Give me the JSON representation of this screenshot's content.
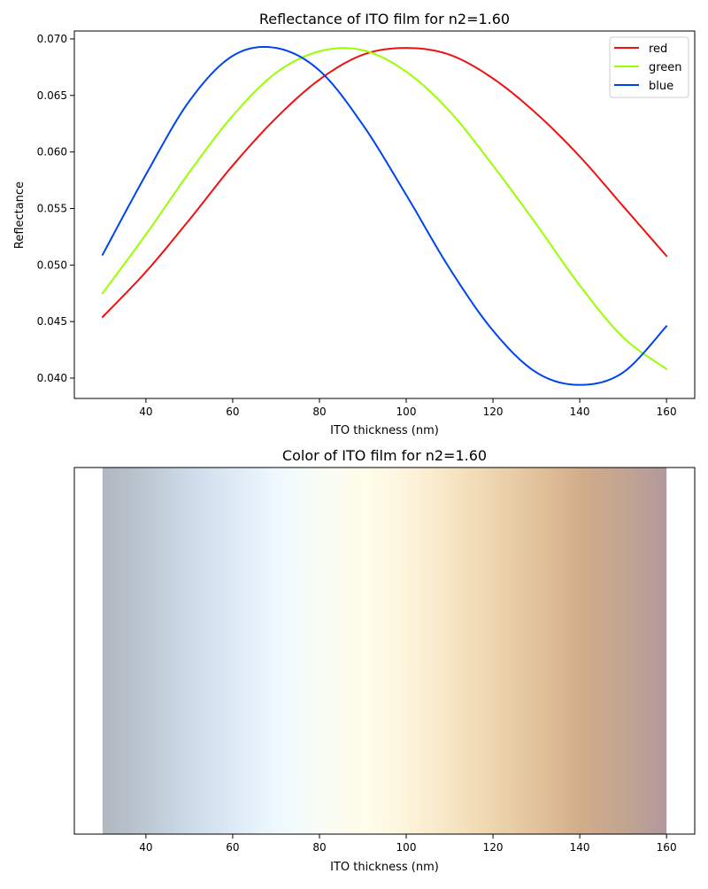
{
  "chart_data": [
    {
      "type": "line",
      "title": "Reflectance of ITO film for n2=1.60",
      "xlabel": "ITO thickness (nm)",
      "ylabel": "Reflectance",
      "xlim": [
        23.5,
        166.5
      ],
      "ylim": [
        0.0382,
        0.0707
      ],
      "xticks": [
        40,
        60,
        80,
        100,
        120,
        140,
        160
      ],
      "yticks": [
        0.04,
        0.045,
        0.05,
        0.055,
        0.06,
        0.065,
        0.07
      ],
      "ytick_labels": [
        "0.040",
        "0.045",
        "0.050",
        "0.055",
        "0.060",
        "0.065",
        "0.070"
      ],
      "grid": false,
      "legend_position": "top-right",
      "x": [
        30,
        40,
        50,
        60,
        70,
        80,
        90,
        100,
        110,
        120,
        130,
        140,
        150,
        160
      ],
      "series": [
        {
          "name": "red",
          "color": "#ee1111",
          "values": [
            0.0454,
            0.0494,
            0.054,
            0.0588,
            0.063,
            0.0664,
            0.0686,
            0.0692,
            0.0686,
            0.0665,
            0.0634,
            0.0596,
            0.0552,
            0.0508
          ]
        },
        {
          "name": "green",
          "color": "#99ff00",
          "values": [
            0.0475,
            0.0527,
            0.0582,
            0.0632,
            0.067,
            0.0689,
            0.069,
            0.0671,
            0.0636,
            0.0588,
            0.0536,
            0.0482,
            0.0436,
            0.0408
          ]
        },
        {
          "name": "blue",
          "color": "#0044ee",
          "values": [
            0.0509,
            0.058,
            0.0645,
            0.0685,
            0.0692,
            0.0672,
            0.0624,
            0.0562,
            0.0497,
            0.0442,
            0.0405,
            0.0394,
            0.0405,
            0.0446
          ]
        }
      ]
    },
    {
      "type": "heatmap",
      "title": "Color of ITO film for n2=1.60",
      "xlabel": "ITO thickness (nm)",
      "xlim": [
        23.5,
        166.5
      ],
      "xticks": [
        40,
        60,
        80,
        100,
        120,
        140,
        160
      ],
      "data_range": [
        30,
        160
      ],
      "yaxis_visible": false,
      "color_stops": [
        {
          "x": 30,
          "color": "#b1b7bf"
        },
        {
          "x": 40,
          "color": "#bcc7d2"
        },
        {
          "x": 50,
          "color": "#cddbe9"
        },
        {
          "x": 60,
          "color": "#dde9f5"
        },
        {
          "x": 70,
          "color": "#eef8fe"
        },
        {
          "x": 80,
          "color": "#f8fdf6"
        },
        {
          "x": 90,
          "color": "#fffdeb"
        },
        {
          "x": 100,
          "color": "#fdf4dd"
        },
        {
          "x": 110,
          "color": "#f7e6c4"
        },
        {
          "x": 120,
          "color": "#edd5ae"
        },
        {
          "x": 130,
          "color": "#e2c29b"
        },
        {
          "x": 140,
          "color": "#d3ad8a"
        },
        {
          "x": 150,
          "color": "#c2a591"
        },
        {
          "x": 160,
          "color": "#b2989e"
        }
      ]
    }
  ]
}
